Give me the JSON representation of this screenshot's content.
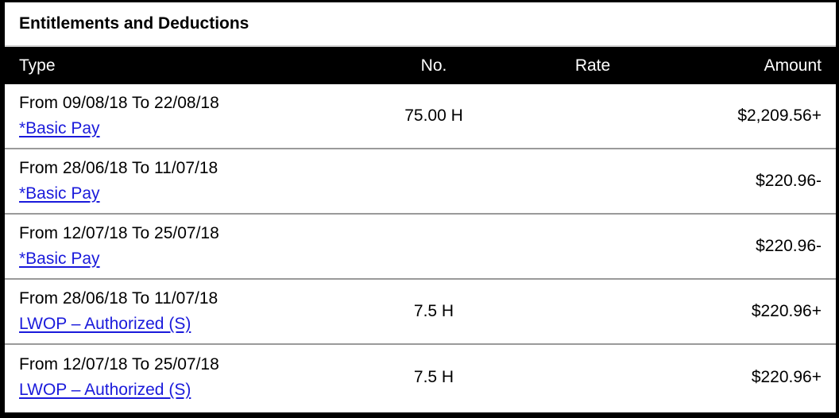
{
  "title": "Entitlements and Deductions",
  "columns": {
    "type": "Type",
    "no": "No.",
    "rate": "Rate",
    "amount": "Amount"
  },
  "rows": [
    {
      "period": "From 09/08/18 To 22/08/18",
      "type": "*Basic Pay",
      "no": "75.00 H",
      "rate": "",
      "amount": "$2,209.56+"
    },
    {
      "period": "From 28/06/18 To 11/07/18",
      "type": "*Basic Pay",
      "no": "",
      "rate": "",
      "amount": "$220.96-"
    },
    {
      "period": "From 12/07/18 To 25/07/18",
      "type": "*Basic Pay",
      "no": "",
      "rate": "",
      "amount": "$220.96-"
    },
    {
      "period": "From 28/06/18 To 11/07/18",
      "type": "LWOP – Authorized (S)",
      "no": "7.5 H",
      "rate": "",
      "amount": "$220.96+"
    },
    {
      "period": "From 12/07/18 To 25/07/18",
      "type": "LWOP – Authorized (S)",
      "no": "7.5 H",
      "rate": "",
      "amount": "$220.96+"
    }
  ]
}
